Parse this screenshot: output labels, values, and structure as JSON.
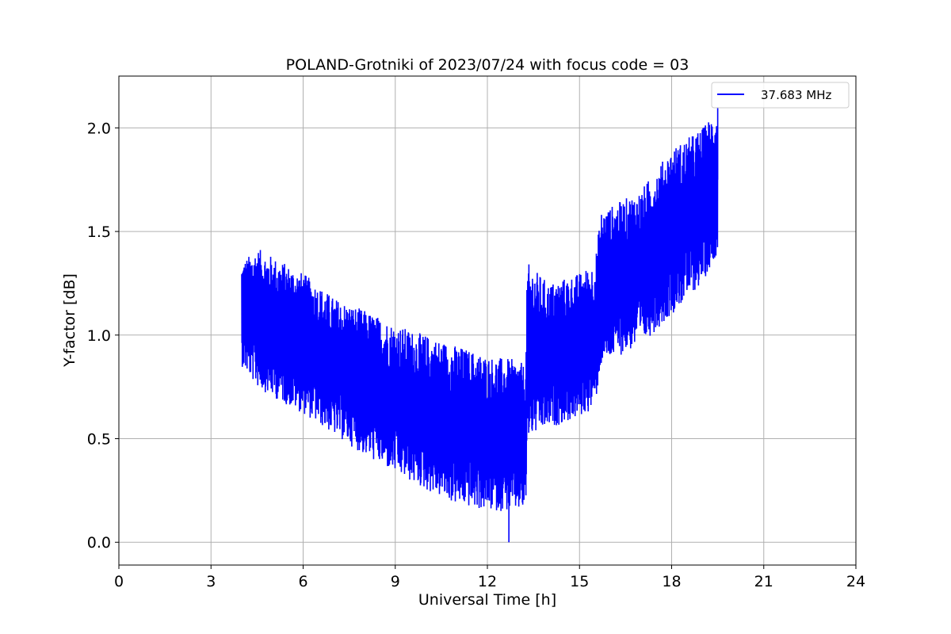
{
  "chart_data": {
    "type": "line",
    "title": "POLAND-Grotniki of 2023/07/24 with focus code = 03",
    "xlabel": "Universal Time [h]",
    "ylabel": "Y-factor [dB]",
    "xlim": [
      0,
      24
    ],
    "ylim": [
      -0.11,
      2.25
    ],
    "xticks": [
      0,
      3,
      6,
      9,
      12,
      15,
      18,
      21,
      24
    ],
    "xtick_labels": [
      "0",
      "3",
      "6",
      "9",
      "12",
      "15",
      "18",
      "21",
      "24"
    ],
    "yticks": [
      0.0,
      0.5,
      1.0,
      1.5,
      2.0
    ],
    "ytick_labels": [
      "0.0",
      "0.5",
      "1.0",
      "1.5",
      "2.0"
    ],
    "grid": true,
    "legend_position": "top-right",
    "series": [
      {
        "name": "37.683 MHz",
        "color": "#0000ff",
        "time_range": [
          4.0,
          19.5
        ],
        "envelope": {
          "x": [
            4.0,
            4.5,
            5.0,
            6.0,
            7.0,
            8.0,
            9.0,
            10.0,
            11.0,
            12.0,
            13.0,
            13.25,
            13.3,
            14.0,
            15.0,
            15.5,
            15.7,
            16.0,
            17.0,
            18.0,
            19.0,
            19.5
          ],
          "min": [
            0.85,
            0.75,
            0.7,
            0.62,
            0.52,
            0.42,
            0.33,
            0.25,
            0.18,
            0.15,
            0.15,
            0.15,
            0.5,
            0.55,
            0.6,
            0.65,
            0.85,
            0.88,
            0.95,
            1.1,
            1.25,
            1.4
          ],
          "max": [
            1.35,
            1.42,
            1.38,
            1.3,
            1.18,
            1.12,
            1.05,
            1.0,
            0.95,
            0.9,
            0.88,
            0.85,
            1.35,
            1.25,
            1.3,
            1.35,
            1.6,
            1.62,
            1.7,
            1.9,
            2.0,
            2.1
          ]
        },
        "annotated_extremes": [
          {
            "x": 12.7,
            "y": 0.0
          },
          {
            "x": 19.5,
            "y": 2.1
          }
        ]
      }
    ]
  }
}
